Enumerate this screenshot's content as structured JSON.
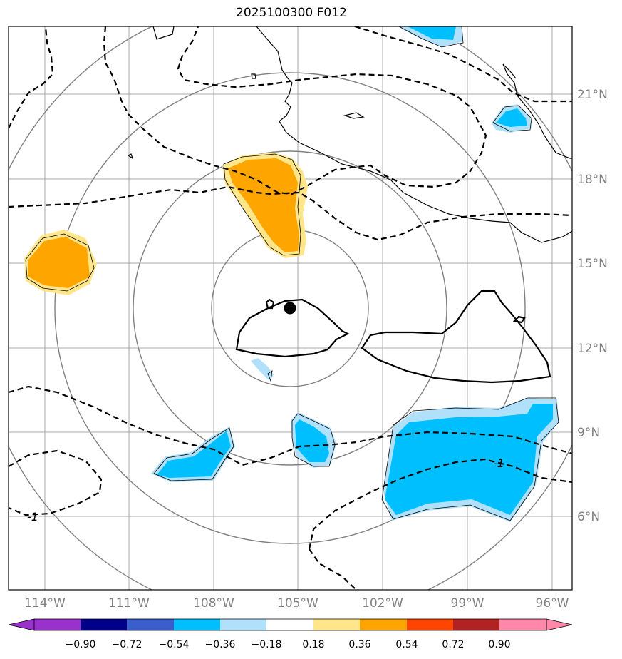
{
  "title": "2025100300 F012",
  "colors": {
    "land_outline": "#000000",
    "grid": "#a9a9a9",
    "range_ring": "#808080",
    "orange": "#ffa500",
    "light_yellow": "#ffe68a",
    "cyan": "#00bfff",
    "light_blue": "#b0e0fa"
  },
  "axes": {
    "lon_ticks": [
      "114°W",
      "111°W",
      "108°W",
      "105°W",
      "102°W",
      "99°W",
      "96°W"
    ],
    "lat_ticks": [
      "21°N",
      "18°N",
      "15°N",
      "12°N",
      "9°N",
      "6°N"
    ]
  },
  "contour_labels": [
    "-1",
    "-1"
  ],
  "storm_center": {
    "lon": -105.3,
    "lat": 13.4
  },
  "colorbar": {
    "levels": [
      "−0.90",
      "−0.72",
      "−0.54",
      "−0.36",
      "−0.18",
      "0.18",
      "0.36",
      "0.54",
      "0.72",
      "0.90"
    ],
    "colors": [
      "#9932cc",
      "#00008b",
      "#3a5fcd",
      "#00bfff",
      "#b0e0fa",
      "#ffffff",
      "#ffe68a",
      "#ffa500",
      "#ff4500",
      "#b22222",
      "#ff88aa"
    ]
  }
}
